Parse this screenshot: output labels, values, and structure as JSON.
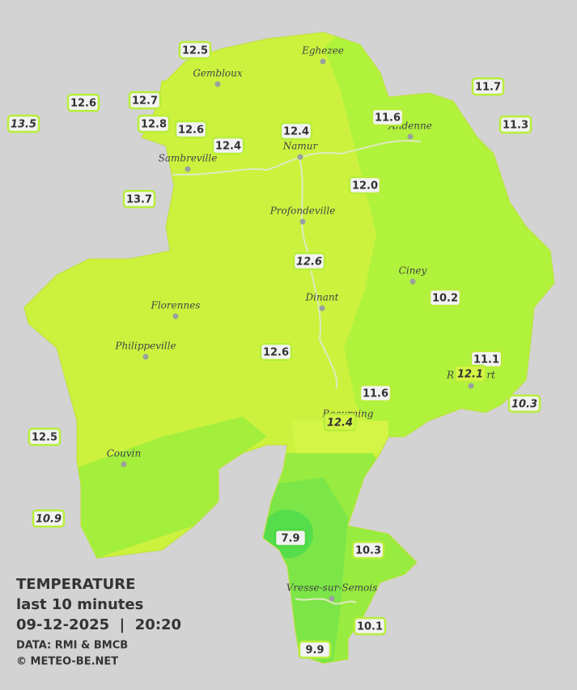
{
  "legend": {
    "title": "TEMPERATURE",
    "subtitle": "last 10 minutes",
    "datetime": "09-12-2025  |  20:20",
    "source": "DATA: RMI & BMCB",
    "credit": "© METEO-BE.NET"
  },
  "cities": [
    {
      "label": "Eghezee"
    },
    {
      "label": "Gembloux"
    },
    {
      "label": "Andenne"
    },
    {
      "label": "Namur"
    },
    {
      "label": "Sambreville"
    },
    {
      "label": "Profondeville"
    },
    {
      "label": "Ciney"
    },
    {
      "label": "Dinant"
    },
    {
      "label": "Florennes"
    },
    {
      "label": "Philippeville"
    },
    {
      "label": "Rochefort"
    },
    {
      "label": "Beauraing"
    },
    {
      "label": "Couvin"
    },
    {
      "label": "Vresse-sur-Semois"
    }
  ],
  "stations": [
    {
      "label": "12.5"
    },
    {
      "label": "12.6"
    },
    {
      "label": "12.7"
    },
    {
      "label": "13.5"
    },
    {
      "label": "12.8"
    },
    {
      "label": "12.6"
    },
    {
      "label": "12.4"
    },
    {
      "label": "12.4"
    },
    {
      "label": "11.6"
    },
    {
      "label": "11.7"
    },
    {
      "label": "11.3"
    },
    {
      "label": "13.7"
    },
    {
      "label": "12.0"
    },
    {
      "label": "12.6"
    },
    {
      "label": "10.2"
    },
    {
      "label": "12.6"
    },
    {
      "label": "11.1"
    },
    {
      "label": "12.1"
    },
    {
      "label": "10.3"
    },
    {
      "label": "11.6"
    },
    {
      "label": "12.4"
    },
    {
      "label": "12.5"
    },
    {
      "label": "10.9"
    },
    {
      "label": "7.9"
    },
    {
      "label": "10.3"
    },
    {
      "label": "10.1"
    },
    {
      "label": "9.9"
    }
  ]
}
